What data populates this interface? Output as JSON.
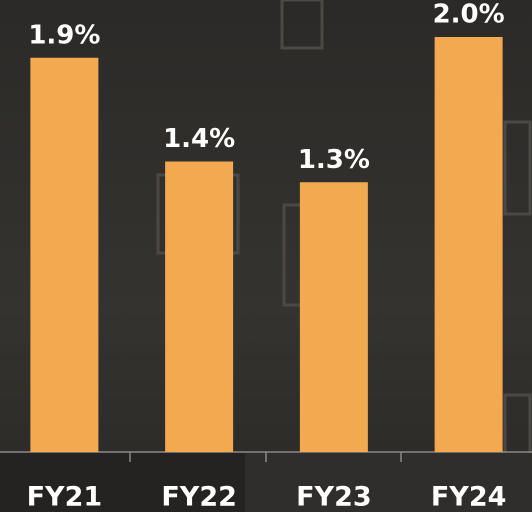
{
  "chart_data": {
    "type": "bar",
    "categories": [
      "FY21",
      "FY22",
      "FY23",
      "FY24"
    ],
    "values": [
      1.9,
      1.4,
      1.3,
      2.0
    ],
    "value_labels": [
      "1.9%",
      "1.4%",
      "1.3%",
      "2.0%"
    ],
    "color": "#f2a950"
  }
}
